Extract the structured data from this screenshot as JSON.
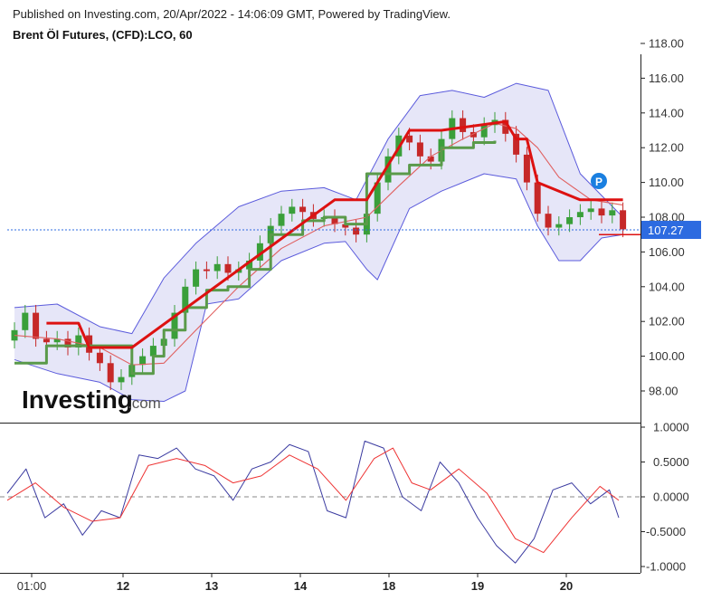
{
  "header": {
    "published": "Published on Investing.com, 20/Apr/2022 - 14:06:09 GMT, Powered by TradingView.",
    "symbol": "Brent Öl Futures, (CFD):LCO, 60"
  },
  "watermark": {
    "brand": "Investing",
    "suffix": ".com"
  },
  "marker_label": "P",
  "colors": {
    "up": "#3a9f3a",
    "down": "#c62828",
    "band_fill": "#e6e6f8",
    "band_line": "#5b5bdc",
    "ma": "#e06060",
    "supertrend_red": "#dd1111",
    "supertrend_green": "#5a9a4a",
    "osc_blue": "#3a3aa0",
    "osc_red": "#ee3333",
    "last_price_bg": "#2d6be0"
  },
  "chart_data": [
    {
      "type": "candlestick",
      "title": "Brent Öl Futures, (CFD):LCO, 60",
      "ylim": [
        96.5,
        118.3
      ],
      "yticks": [
        "98.00",
        "100.00",
        "102.00",
        "104.00",
        "106.00",
        "108.00",
        "110.00",
        "112.00",
        "114.00",
        "116.00",
        "118.00"
      ],
      "x_labels": [
        "01:00",
        "12",
        "13",
        "14",
        "18",
        "19",
        "20"
      ],
      "last_price": "107.27",
      "close_points": [
        [
          0,
          101.5
        ],
        [
          1,
          102.5
        ],
        [
          2,
          101.0
        ],
        [
          3,
          100.8
        ],
        [
          4,
          101.0
        ],
        [
          5,
          100.5
        ],
        [
          6,
          101.2
        ],
        [
          7,
          100.2
        ],
        [
          8,
          99.6
        ],
        [
          9,
          98.5
        ],
        [
          10,
          98.8
        ],
        [
          11,
          99.5
        ],
        [
          12,
          100.0
        ],
        [
          13,
          100.6
        ],
        [
          14,
          101.0
        ],
        [
          15,
          102.5
        ],
        [
          16,
          104.0
        ],
        [
          17,
          105.0
        ],
        [
          18,
          104.9
        ],
        [
          19,
          105.3
        ],
        [
          20,
          104.8
        ],
        [
          21,
          105.0
        ],
        [
          22,
          105.5
        ],
        [
          23,
          106.5
        ],
        [
          24,
          107.5
        ],
        [
          25,
          108.2
        ],
        [
          26,
          108.6
        ],
        [
          27,
          108.3
        ],
        [
          28,
          107.9
        ],
        [
          29,
          108.0
        ],
        [
          30,
          107.6
        ],
        [
          31,
          107.4
        ],
        [
          32,
          107.0
        ],
        [
          33,
          108.2
        ],
        [
          34,
          110.0
        ],
        [
          35,
          111.5
        ],
        [
          36,
          112.7
        ],
        [
          37,
          112.3
        ],
        [
          38,
          111.5
        ],
        [
          39,
          111.2
        ],
        [
          40,
          112.5
        ],
        [
          41,
          113.7
        ],
        [
          42,
          112.9
        ],
        [
          43,
          112.6
        ],
        [
          44,
          113.3
        ],
        [
          45,
          113.6
        ],
        [
          46,
          112.8
        ],
        [
          47,
          111.6
        ],
        [
          48,
          110.0
        ],
        [
          49,
          108.2
        ],
        [
          50,
          107.4
        ],
        [
          51,
          107.6
        ],
        [
          52,
          108.0
        ],
        [
          53,
          108.3
        ],
        [
          54,
          108.5
        ],
        [
          55,
          108.1
        ],
        [
          56,
          108.4
        ],
        [
          57,
          107.3
        ]
      ],
      "bollinger_upper": [
        [
          0,
          102.8
        ],
        [
          4,
          103.0
        ],
        [
          8,
          101.7
        ],
        [
          11,
          101.3
        ],
        [
          14,
          104.5
        ],
        [
          17,
          106.5
        ],
        [
          21,
          108.6
        ],
        [
          25,
          109.5
        ],
        [
          29,
          109.7
        ],
        [
          32,
          109.0
        ],
        [
          35,
          112.5
        ],
        [
          38,
          115.0
        ],
        [
          41,
          115.3
        ],
        [
          44,
          114.9
        ],
        [
          47,
          115.7
        ],
        [
          50,
          115.3
        ],
        [
          53,
          110.5
        ],
        [
          57,
          108.0
        ]
      ],
      "bollinger_lower": [
        [
          0,
          99.8
        ],
        [
          4,
          99.0
        ],
        [
          8,
          98.5
        ],
        [
          11,
          97.5
        ],
        [
          14,
          97.4
        ],
        [
          16,
          98.0
        ],
        [
          18,
          103.0
        ],
        [
          21,
          103.3
        ],
        [
          25,
          105.5
        ],
        [
          29,
          106.5
        ],
        [
          31,
          106.6
        ],
        [
          33,
          105.0
        ],
        [
          34,
          104.4
        ],
        [
          37,
          108.5
        ],
        [
          40,
          109.5
        ],
        [
          44,
          110.5
        ],
        [
          47,
          110.2
        ],
        [
          49,
          107.5
        ],
        [
          51,
          105.5
        ],
        [
          53,
          105.5
        ],
        [
          55,
          106.8
        ],
        [
          57,
          107.0
        ]
      ],
      "moving_average": [
        [
          0,
          101.2
        ],
        [
          4,
          101.0
        ],
        [
          8,
          100.5
        ],
        [
          11,
          99.5
        ],
        [
          14,
          99.6
        ],
        [
          17,
          101.5
        ],
        [
          21,
          104.0
        ],
        [
          25,
          106.2
        ],
        [
          29,
          107.5
        ],
        [
          33,
          108.0
        ],
        [
          36,
          109.8
        ],
        [
          39,
          111.5
        ],
        [
          42,
          112.5
        ],
        [
          45,
          113.4
        ],
        [
          47,
          113.1
        ],
        [
          49,
          112.0
        ],
        [
          51,
          110.3
        ],
        [
          54,
          109.0
        ],
        [
          57,
          108.7
        ]
      ],
      "supertrend_red": [
        [
          3,
          101.9
        ],
        [
          6,
          101.9
        ],
        [
          7,
          100.5
        ],
        [
          11,
          100.5
        ],
        [
          30,
          109.0
        ],
        [
          33,
          109.0
        ],
        [
          37,
          113.0
        ],
        [
          40,
          113.0
        ],
        [
          46,
          113.5
        ],
        [
          47,
          112.5
        ],
        [
          48,
          112.5
        ],
        [
          49,
          110.0
        ],
        [
          53,
          109.0
        ],
        [
          57,
          109.0
        ]
      ],
      "supertrend_green": [
        [
          0,
          99.6
        ],
        [
          3,
          100.6
        ],
        [
          7,
          100.6
        ],
        [
          11,
          99.0
        ],
        [
          13,
          100.0
        ],
        [
          14,
          101.5
        ],
        [
          16,
          102.8
        ],
        [
          18,
          103.8
        ],
        [
          20,
          104.0
        ],
        [
          22,
          105.0
        ],
        [
          24,
          107.0
        ],
        [
          27,
          107.8
        ],
        [
          29,
          108.0
        ],
        [
          31,
          107.6
        ],
        [
          33,
          110.5
        ],
        [
          37,
          111.0
        ],
        [
          40,
          112.0
        ],
        [
          43,
          112.3
        ],
        [
          45,
          112.4
        ]
      ]
    },
    {
      "type": "line",
      "title": "",
      "ylim": [
        -1.0,
        1.0
      ],
      "yticks": [
        "-1.0000",
        "-0.5000",
        "0.0000",
        "0.5000",
        "1.0000"
      ],
      "series": [
        {
          "values": [
            [
              0,
              0.05
            ],
            [
              2,
              0.4
            ],
            [
              4,
              -0.3
            ],
            [
              6,
              -0.1
            ],
            [
              8,
              -0.55
            ],
            [
              10,
              -0.2
            ],
            [
              12,
              -0.3
            ],
            [
              14,
              0.6
            ],
            [
              16,
              0.55
            ],
            [
              18,
              0.7
            ],
            [
              20,
              0.4
            ],
            [
              22,
              0.3
            ],
            [
              24,
              -0.05
            ],
            [
              26,
              0.4
            ],
            [
              28,
              0.5
            ],
            [
              30,
              0.75
            ],
            [
              32,
              0.65
            ],
            [
              34,
              -0.2
            ],
            [
              36,
              -0.3
            ],
            [
              38,
              0.8
            ],
            [
              40,
              0.7
            ],
            [
              42,
              0.0
            ],
            [
              44,
              -0.2
            ],
            [
              46,
              0.5
            ],
            [
              48,
              0.2
            ],
            [
              50,
              -0.3
            ],
            [
              52,
              -0.7
            ],
            [
              54,
              -0.95
            ],
            [
              56,
              -0.6
            ],
            [
              58,
              0.1
            ],
            [
              60,
              0.2
            ],
            [
              62,
              -0.1
            ],
            [
              64,
              0.1
            ],
            [
              65,
              -0.3
            ]
          ]
        },
        {
          "values": [
            [
              0,
              -0.05
            ],
            [
              3,
              0.2
            ],
            [
              6,
              -0.15
            ],
            [
              9,
              -0.35
            ],
            [
              12,
              -0.3
            ],
            [
              15,
              0.45
            ],
            [
              18,
              0.55
            ],
            [
              21,
              0.45
            ],
            [
              24,
              0.2
            ],
            [
              27,
              0.3
            ],
            [
              30,
              0.6
            ],
            [
              33,
              0.4
            ],
            [
              36,
              -0.05
            ],
            [
              39,
              0.55
            ],
            [
              41,
              0.7
            ],
            [
              43,
              0.2
            ],
            [
              45,
              0.1
            ],
            [
              48,
              0.4
            ],
            [
              51,
              0.05
            ],
            [
              54,
              -0.6
            ],
            [
              57,
              -0.8
            ],
            [
              60,
              -0.3
            ],
            [
              63,
              0.15
            ],
            [
              64,
              0.05
            ],
            [
              65,
              -0.05
            ]
          ]
        }
      ]
    }
  ]
}
